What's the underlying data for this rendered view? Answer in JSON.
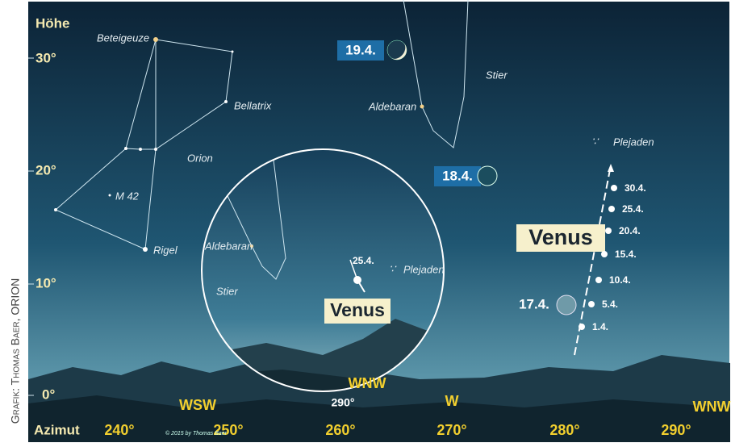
{
  "credit": "Grafik: Thomas Baer, ORION",
  "axes": {
    "altitude_title": "Höhe",
    "altitude_labels": [
      "30°",
      "20°",
      "10°",
      "0°"
    ],
    "azimuth_title": "Azimut",
    "azimuth_labels": [
      "240°",
      "250°",
      "260°",
      "270°",
      "280°",
      "290°"
    ]
  },
  "directions": [
    "WSW",
    "W",
    "WNW"
  ],
  "stars": [
    "Beteigeuze",
    "Bellatrix",
    "M 42",
    "Rigel",
    "Aldebaran",
    "Plejaden"
  ],
  "constellations": [
    "Orion",
    "Stier"
  ],
  "moon_dates": [
    "19.4.",
    "18.4.",
    "17.4."
  ],
  "venus": {
    "label": "Venus",
    "dates": [
      "30.4.",
      "25.4.",
      "20.4.",
      "15.4.",
      "10.4.",
      "5.4.",
      "1.4."
    ]
  },
  "inset": {
    "stars": [
      "Aldebaran",
      "Plejaden"
    ],
    "constellation": "Stier",
    "venus_date": "25.4.",
    "venus_label": "Venus",
    "direction": "WNW",
    "azimuth": "290°"
  },
  "copyright": "© 2015 by Thomas Baer"
}
